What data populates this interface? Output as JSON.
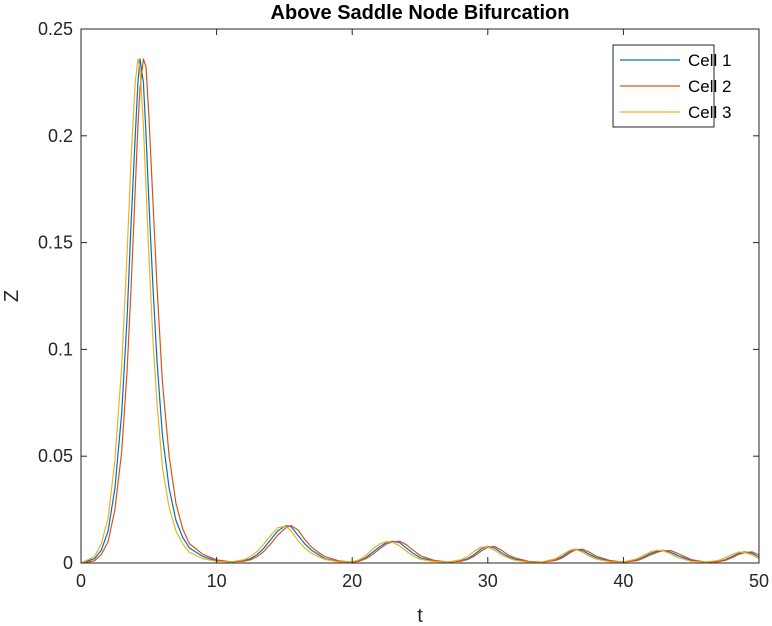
{
  "chart_data": {
    "type": "line",
    "title": "Above Saddle Node Bifurcation",
    "xlabel": "t",
    "ylabel": "Z",
    "xlim": [
      0,
      50
    ],
    "ylim": [
      0,
      0.25
    ],
    "xticks": [
      0,
      10,
      20,
      30,
      40,
      50
    ],
    "yticks": [
      0,
      0.05,
      0.1,
      0.15,
      0.2,
      0.25
    ],
    "xtick_labels": [
      "0",
      "10",
      "20",
      "30",
      "40",
      "50"
    ],
    "ytick_labels": [
      "0",
      "0.05",
      "0.1",
      "0.15",
      "0.2",
      "0.25"
    ],
    "grid": false,
    "legend_position": "top-right",
    "series": [
      {
        "name": "Cell 1",
        "color": "#0072BD",
        "x": [
          0,
          1,
          1.5,
          2,
          2.5,
          3,
          3.4,
          3.7,
          4,
          4.2,
          4.35,
          4.6,
          4.8,
          5,
          5.3,
          5.6,
          6,
          6.5,
          7,
          7.5,
          8,
          9,
          10,
          11,
          12,
          12.5,
          13,
          13.5,
          14,
          14.5,
          15.1,
          15.5,
          16,
          16.5,
          17,
          17.5,
          18,
          19,
          20,
          20.5,
          21,
          21.5,
          22,
          22.5,
          22.95,
          23.5,
          24,
          24.5,
          25,
          26,
          27,
          28,
          28.5,
          29,
          29.5,
          29.95,
          30.5,
          31,
          31.5,
          32,
          33,
          34,
          35,
          35.5,
          36,
          36.4,
          37,
          37.5,
          38,
          39,
          40,
          41,
          41.5,
          42,
          42.5,
          42.9,
          43.5,
          44,
          45,
          46,
          47,
          47.5,
          48,
          48.5,
          48.9,
          49.5,
          50
        ],
        "y": [
          0,
          0.002,
          0.006,
          0.015,
          0.035,
          0.07,
          0.115,
          0.16,
          0.2,
          0.225,
          0.236,
          0.225,
          0.2,
          0.17,
          0.13,
          0.095,
          0.06,
          0.035,
          0.02,
          0.012,
          0.007,
          0.003,
          0.001,
          0.0005,
          0.001,
          0.002,
          0.004,
          0.007,
          0.011,
          0.015,
          0.0175,
          0.017,
          0.013,
          0.009,
          0.006,
          0.004,
          0.002,
          0.0007,
          0.0004,
          0.001,
          0.0025,
          0.005,
          0.0075,
          0.0095,
          0.0102,
          0.0095,
          0.007,
          0.0045,
          0.0025,
          0.001,
          0.0004,
          0.001,
          0.002,
          0.004,
          0.0065,
          0.0078,
          0.007,
          0.0048,
          0.003,
          0.0018,
          0.0006,
          0.0004,
          0.0015,
          0.003,
          0.0052,
          0.0065,
          0.0058,
          0.004,
          0.0025,
          0.0009,
          0.0004,
          0.0014,
          0.0028,
          0.0045,
          0.0055,
          0.006,
          0.005,
          0.0035,
          0.0012,
          0.0004,
          0.0008,
          0.0015,
          0.003,
          0.0045,
          0.0052,
          0.0045,
          0.0028
        ]
      },
      {
        "name": "Cell 2",
        "color": "#D95319",
        "x": [
          0,
          1,
          1.5,
          2,
          2.5,
          3,
          3.4,
          3.7,
          4,
          4.2,
          4.35,
          4.6,
          4.8,
          5,
          5.3,
          5.6,
          6,
          6.5,
          7,
          7.5,
          8,
          9,
          10,
          11,
          12,
          12.5,
          13,
          13.5,
          14,
          14.5,
          15.1,
          15.5,
          16,
          16.5,
          17,
          17.5,
          18,
          19,
          20,
          20.5,
          21,
          21.5,
          22,
          22.5,
          22.95,
          23.5,
          24,
          24.5,
          25,
          26,
          27,
          28,
          28.5,
          29,
          29.5,
          29.95,
          30.5,
          31,
          31.5,
          32,
          33,
          34,
          35,
          35.5,
          36,
          36.4,
          37,
          37.5,
          38,
          39,
          40,
          41,
          41.5,
          42,
          42.5,
          42.9,
          43.5,
          44,
          45,
          46,
          47,
          47.5,
          48,
          48.5,
          48.9,
          49.5,
          50
        ],
        "y": [
          0,
          0.001,
          0.004,
          0.01,
          0.025,
          0.052,
          0.09,
          0.13,
          0.175,
          0.205,
          0.222,
          0.236,
          0.232,
          0.21,
          0.17,
          0.13,
          0.085,
          0.05,
          0.028,
          0.016,
          0.009,
          0.004,
          0.0015,
          0.0006,
          0.0008,
          0.0015,
          0.003,
          0.0055,
          0.009,
          0.013,
          0.0165,
          0.0175,
          0.0155,
          0.011,
          0.0075,
          0.005,
          0.003,
          0.001,
          0.0004,
          0.0008,
          0.002,
          0.004,
          0.0065,
          0.0088,
          0.0098,
          0.0102,
          0.0085,
          0.006,
          0.0035,
          0.0013,
          0.0005,
          0.0008,
          0.0016,
          0.0032,
          0.0055,
          0.0072,
          0.0078,
          0.006,
          0.0038,
          0.0024,
          0.0008,
          0.0004,
          0.0012,
          0.0024,
          0.0045,
          0.006,
          0.0065,
          0.005,
          0.0032,
          0.0012,
          0.0004,
          0.0011,
          0.0023,
          0.0038,
          0.005,
          0.0057,
          0.0058,
          0.0045,
          0.0016,
          0.0005,
          0.0006,
          0.0012,
          0.0025,
          0.004,
          0.0048,
          0.0052,
          0.0038
        ]
      },
      {
        "name": "Cell 3",
        "color": "#EDB120",
        "x": [
          0,
          1,
          1.5,
          2,
          2.5,
          3,
          3.4,
          3.7,
          4,
          4.2,
          4.35,
          4.6,
          4.8,
          5,
          5.3,
          5.6,
          6,
          6.5,
          7,
          7.5,
          8,
          9,
          10,
          11,
          12,
          12.5,
          13,
          13.5,
          14,
          14.5,
          15.1,
          15.5,
          16,
          16.5,
          17,
          17.5,
          18,
          19,
          20,
          20.5,
          21,
          21.5,
          22,
          22.5,
          22.95,
          23.5,
          24,
          24.5,
          25,
          26,
          27,
          28,
          28.5,
          29,
          29.5,
          29.95,
          30.5,
          31,
          31.5,
          32,
          33,
          34,
          35,
          35.5,
          36,
          36.4,
          37,
          37.5,
          38,
          39,
          40,
          41,
          41.5,
          42,
          42.5,
          42.9,
          43.5,
          44,
          45,
          46,
          47,
          47.5,
          48,
          48.5,
          48.9,
          49.5,
          50
        ],
        "y": [
          0,
          0.003,
          0.009,
          0.021,
          0.048,
          0.092,
          0.145,
          0.19,
          0.225,
          0.236,
          0.232,
          0.205,
          0.175,
          0.145,
          0.105,
          0.075,
          0.045,
          0.026,
          0.015,
          0.009,
          0.005,
          0.002,
          0.0008,
          0.0005,
          0.0015,
          0.003,
          0.0055,
          0.009,
          0.013,
          0.0165,
          0.0172,
          0.015,
          0.0105,
          0.007,
          0.0045,
          0.003,
          0.0017,
          0.0005,
          0.0006,
          0.0015,
          0.0035,
          0.0065,
          0.0088,
          0.01,
          0.0098,
          0.008,
          0.0055,
          0.0033,
          0.0018,
          0.0007,
          0.0004,
          0.0015,
          0.003,
          0.0055,
          0.0074,
          0.0076,
          0.006,
          0.0038,
          0.0024,
          0.0013,
          0.0004,
          0.0005,
          0.002,
          0.004,
          0.0058,
          0.0065,
          0.005,
          0.0032,
          0.0018,
          0.0006,
          0.0005,
          0.002,
          0.0036,
          0.0052,
          0.006,
          0.0058,
          0.0042,
          0.0026,
          0.0008,
          0.0004,
          0.0012,
          0.0025,
          0.004,
          0.0051,
          0.005,
          0.0038,
          0.002
        ]
      }
    ]
  }
}
